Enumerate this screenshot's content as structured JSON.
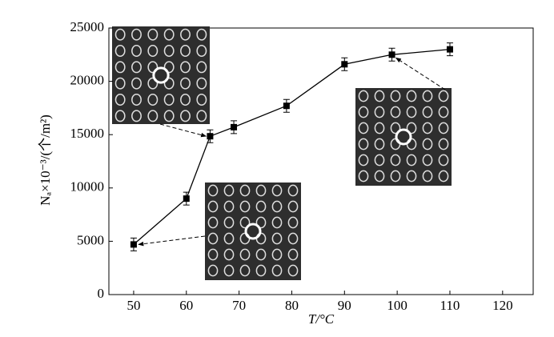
{
  "chart_data": {
    "type": "line",
    "x_label": "T/°C",
    "y_label": "Nₐ×10⁻³/(个/m²)",
    "x": [
      50,
      60,
      64.5,
      69,
      79,
      90,
      99,
      110
    ],
    "values": [
      4700,
      9000,
      14850,
      15700,
      17700,
      21600,
      22500,
      23000
    ],
    "errors": [
      600,
      600,
      600,
      600,
      600,
      600,
      600,
      600
    ],
    "color": "#000000",
    "xlim": [
      45.3,
      125.8
    ],
    "xticks": [
      50,
      60,
      70,
      80,
      90,
      100,
      110,
      120
    ],
    "ylim": [
      0,
      25000
    ],
    "yticks": [
      0,
      5000,
      10000,
      15000,
      20000,
      25000
    ]
  }
}
